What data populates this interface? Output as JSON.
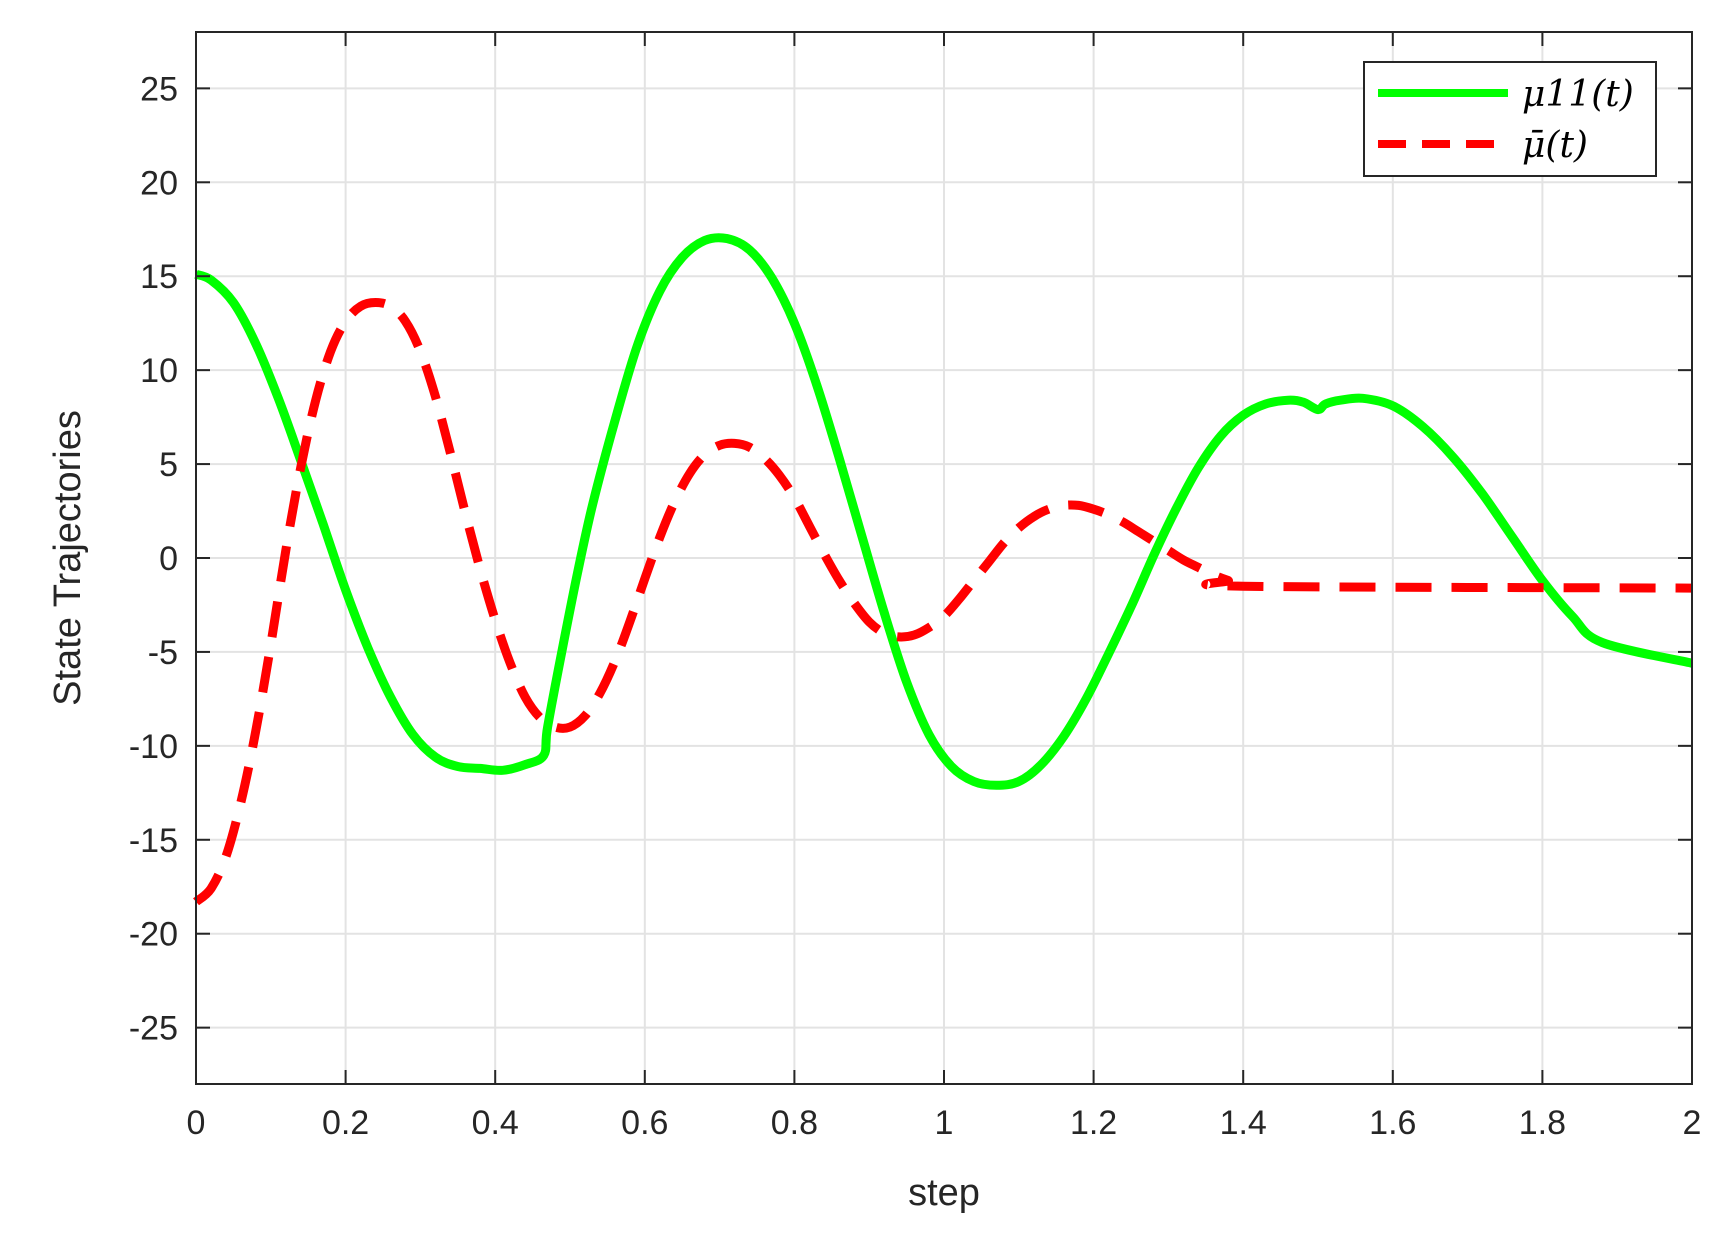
{
  "chart_data": {
    "type": "line",
    "title": "",
    "xlabel": "step",
    "ylabel": "State Trajectories",
    "xlim": [
      0,
      2
    ],
    "ylim": [
      -28,
      28
    ],
    "xticks": [
      0,
      0.2,
      0.4,
      0.6,
      0.8,
      1,
      1.2,
      1.4,
      1.6,
      1.8,
      2
    ],
    "xtick_labels": [
      "0",
      "0.2",
      "0.4",
      "0.6",
      "0.8",
      "1",
      "1.2",
      "1.4",
      "1.6",
      "1.8",
      "2"
    ],
    "yticks": [
      25,
      20,
      15,
      10,
      5,
      0,
      -5,
      -10,
      -15,
      -20,
      -25
    ],
    "ytick_labels": [
      "25",
      "20",
      "15",
      "10",
      "5",
      "0",
      "-5",
      "-10",
      "-15",
      "-20",
      "-25"
    ],
    "grid": true,
    "legend_position": "top-right",
    "series": [
      {
        "name": "μ11(t)",
        "color": "#00ff00",
        "style": "solid",
        "points": [
          [
            0,
            15.1
          ],
          [
            0.02,
            14.8
          ],
          [
            0.05,
            13.6
          ],
          [
            0.08,
            11.4
          ],
          [
            0.11,
            8.5
          ],
          [
            0.14,
            5.2
          ],
          [
            0.17,
            1.8
          ],
          [
            0.2,
            -1.7
          ],
          [
            0.23,
            -4.8
          ],
          [
            0.26,
            -7.4
          ],
          [
            0.29,
            -9.4
          ],
          [
            0.32,
            -10.6
          ],
          [
            0.35,
            -11.1
          ],
          [
            0.38,
            -11.2
          ],
          [
            0.41,
            -11.3
          ],
          [
            0.44,
            -11.0
          ],
          [
            0.465,
            -10.5
          ],
          [
            0.47,
            -9.0
          ],
          [
            0.49,
            -4.8
          ],
          [
            0.51,
            -0.8
          ],
          [
            0.53,
            2.8
          ],
          [
            0.56,
            7.3
          ],
          [
            0.59,
            11.3
          ],
          [
            0.62,
            14.2
          ],
          [
            0.65,
            16.0
          ],
          [
            0.68,
            16.9
          ],
          [
            0.71,
            17.0
          ],
          [
            0.74,
            16.4
          ],
          [
            0.77,
            14.9
          ],
          [
            0.8,
            12.5
          ],
          [
            0.83,
            9.2
          ],
          [
            0.86,
            5.3
          ],
          [
            0.89,
            1.2
          ],
          [
            0.92,
            -2.9
          ],
          [
            0.95,
            -6.6
          ],
          [
            0.98,
            -9.4
          ],
          [
            1.01,
            -11.1
          ],
          [
            1.04,
            -11.9
          ],
          [
            1.07,
            -12.1
          ],
          [
            1.1,
            -11.9
          ],
          [
            1.13,
            -11.0
          ],
          [
            1.16,
            -9.5
          ],
          [
            1.19,
            -7.5
          ],
          [
            1.22,
            -5.1
          ],
          [
            1.25,
            -2.6
          ],
          [
            1.28,
            0.1
          ],
          [
            1.31,
            2.6
          ],
          [
            1.34,
            4.8
          ],
          [
            1.37,
            6.5
          ],
          [
            1.4,
            7.6
          ],
          [
            1.43,
            8.2
          ],
          [
            1.46,
            8.4
          ],
          [
            1.48,
            8.3
          ],
          [
            1.5,
            7.9
          ],
          [
            1.51,
            8.2
          ],
          [
            1.53,
            8.4
          ],
          [
            1.56,
            8.5
          ],
          [
            1.6,
            8.1
          ],
          [
            1.64,
            7.0
          ],
          [
            1.68,
            5.4
          ],
          [
            1.72,
            3.4
          ],
          [
            1.76,
            1.1
          ],
          [
            1.8,
            -1.2
          ],
          [
            1.84,
            -3.1
          ],
          [
            1.88,
            -4.5
          ],
          [
            2.0,
            -5.6
          ]
        ]
      },
      {
        "name": "μ̄(t)",
        "color": "#ff0000",
        "style": "dashed",
        "points": [
          [
            0,
            -18.3
          ],
          [
            0.02,
            -17.6
          ],
          [
            0.04,
            -15.9
          ],
          [
            0.06,
            -13.0
          ],
          [
            0.08,
            -9.2
          ],
          [
            0.1,
            -4.6
          ],
          [
            0.12,
            0.4
          ],
          [
            0.14,
            4.8
          ],
          [
            0.16,
            8.4
          ],
          [
            0.18,
            11.0
          ],
          [
            0.2,
            12.6
          ],
          [
            0.22,
            13.4
          ],
          [
            0.24,
            13.6
          ],
          [
            0.26,
            13.4
          ],
          [
            0.28,
            12.6
          ],
          [
            0.3,
            11.0
          ],
          [
            0.32,
            8.6
          ],
          [
            0.34,
            5.6
          ],
          [
            0.36,
            2.4
          ],
          [
            0.38,
            -0.6
          ],
          [
            0.4,
            -3.3
          ],
          [
            0.42,
            -5.6
          ],
          [
            0.44,
            -7.4
          ],
          [
            0.46,
            -8.5
          ],
          [
            0.48,
            -9.0
          ],
          [
            0.5,
            -9.0
          ],
          [
            0.52,
            -8.4
          ],
          [
            0.54,
            -7.2
          ],
          [
            0.56,
            -5.5
          ],
          [
            0.58,
            -3.4
          ],
          [
            0.6,
            -1.1
          ],
          [
            0.62,
            1.1
          ],
          [
            0.64,
            3.0
          ],
          [
            0.66,
            4.5
          ],
          [
            0.68,
            5.5
          ],
          [
            0.7,
            6.0
          ],
          [
            0.72,
            6.1
          ],
          [
            0.74,
            5.9
          ],
          [
            0.76,
            5.3
          ],
          [
            0.78,
            4.4
          ],
          [
            0.8,
            3.2
          ],
          [
            0.82,
            1.7
          ],
          [
            0.84,
            0.2
          ],
          [
            0.86,
            -1.2
          ],
          [
            0.88,
            -2.4
          ],
          [
            0.9,
            -3.4
          ],
          [
            0.92,
            -4.0
          ],
          [
            0.94,
            -4.2
          ],
          [
            0.96,
            -4.1
          ],
          [
            0.98,
            -3.7
          ],
          [
            1.0,
            -3.1
          ],
          [
            1.02,
            -2.2
          ],
          [
            1.04,
            -1.2
          ],
          [
            1.06,
            -0.2
          ],
          [
            1.08,
            0.8
          ],
          [
            1.1,
            1.6
          ],
          [
            1.12,
            2.2
          ],
          [
            1.14,
            2.6
          ],
          [
            1.16,
            2.8
          ],
          [
            1.18,
            2.8
          ],
          [
            1.2,
            2.6
          ],
          [
            1.22,
            2.3
          ],
          [
            1.24,
            1.9
          ],
          [
            1.26,
            1.4
          ],
          [
            1.28,
            0.9
          ],
          [
            1.3,
            0.4
          ],
          [
            1.32,
            -0.1
          ],
          [
            1.34,
            -0.5
          ],
          [
            1.36,
            -0.9
          ],
          [
            1.38,
            -1.2
          ],
          [
            1.4,
            -1.5
          ],
          [
            2.0,
            -1.6
          ]
        ]
      }
    ]
  }
}
